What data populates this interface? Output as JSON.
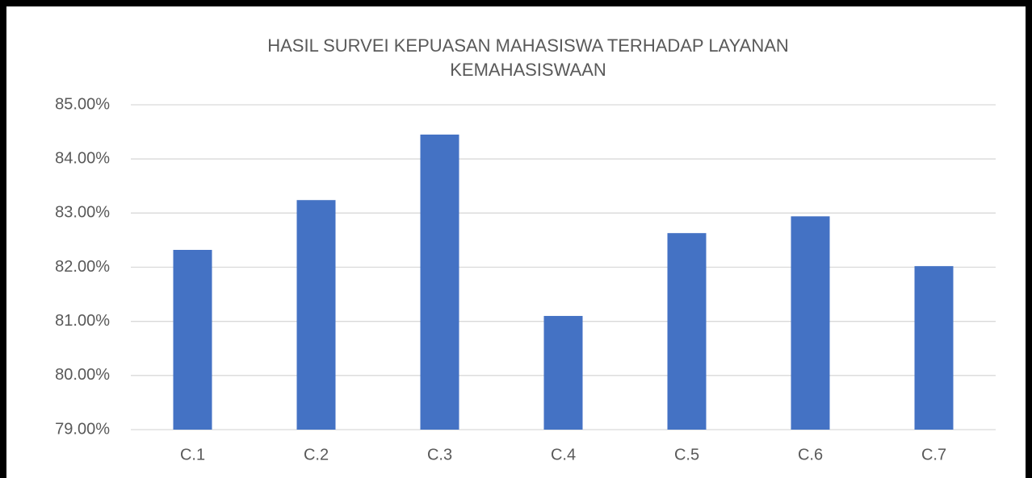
{
  "chart_data": {
    "type": "bar",
    "title": "HASIL SURVEI KEPUASAN MAHASISWA TERHADAP LAYANAN KEMAHASISWAAN",
    "categories": [
      "C.1",
      "C.2",
      "C.3",
      "C.4",
      "C.5",
      "C.6",
      "C.7"
    ],
    "values": [
      82.32,
      83.24,
      84.45,
      81.1,
      82.63,
      82.94,
      82.02
    ],
    "color": "#4472c4",
    "ylim": [
      79,
      85
    ],
    "yticks": [
      {
        "value": 79,
        "label": "79.00%"
      },
      {
        "value": 80,
        "label": "80.00%"
      },
      {
        "value": 81,
        "label": "81.00%"
      },
      {
        "value": 82,
        "label": "82.00%"
      },
      {
        "value": 83,
        "label": "83.00%"
      },
      {
        "value": 84,
        "label": "84.00%"
      },
      {
        "value": 85,
        "label": "85.00%"
      }
    ],
    "grid": true
  }
}
